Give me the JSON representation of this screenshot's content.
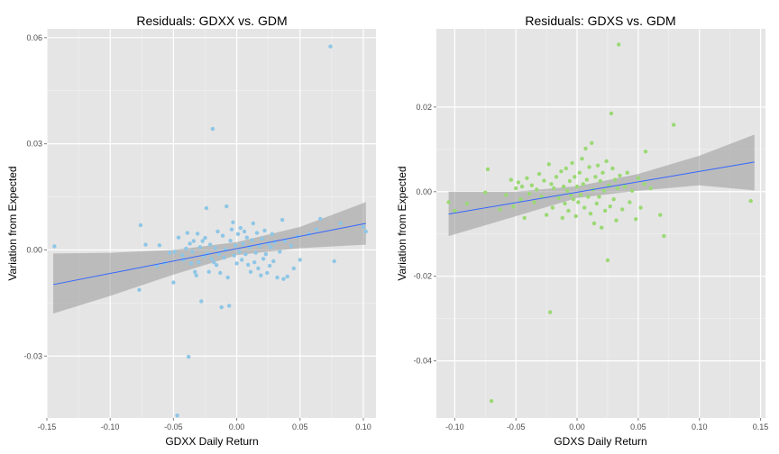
{
  "chart_data": [
    {
      "type": "scatter",
      "title": "Residuals: GDXX vs. GDM",
      "xlabel": "GDXX Daily Return",
      "ylabel": "Variation from Expected",
      "xlim": [
        -0.15,
        0.11
      ],
      "ylim": [
        -0.0475,
        0.0625
      ],
      "x_ticks": [
        "-0.15",
        "-0.10",
        "-0.05",
        "0.00",
        "0.05",
        "0.10"
      ],
      "y_ticks": [
        "-0.03",
        "0.00",
        "0.03",
        "0.06"
      ],
      "grid": true,
      "point_color": "#8ec6e6",
      "line_color": "#3366ff",
      "band_color": "#999999",
      "fit": {
        "x0": -0.145,
        "y0": -0.0098,
        "x1": 0.102,
        "y1": 0.0075
      },
      "band": {
        "x": [
          -0.145,
          -0.1,
          -0.05,
          0.0,
          0.05,
          0.102
        ],
        "upper": [
          -0.001,
          -0.0008,
          0.0,
          0.0022,
          0.0065,
          0.0135
        ],
        "lower": [
          -0.018,
          -0.013,
          -0.007,
          -0.0015,
          0.0005,
          0.0015
        ]
      },
      "points": [
        [
          -0.144,
          0.001
        ],
        [
          -0.076,
          0.007
        ],
        [
          -0.077,
          -0.0113
        ],
        [
          -0.072,
          0.0015
        ],
        [
          -0.063,
          -0.0045
        ],
        [
          -0.061,
          0.0013
        ],
        [
          -0.057,
          -0.0037
        ],
        [
          -0.053,
          -0.0008
        ],
        [
          -0.05,
          -0.0092
        ],
        [
          -0.049,
          -0.0005
        ],
        [
          -0.047,
          -0.0468
        ],
        [
          -0.046,
          0.0035
        ],
        [
          -0.043,
          -0.0015
        ],
        [
          -0.042,
          -0.0028
        ],
        [
          -0.04,
          0.0004
        ],
        [
          -0.039,
          0.0048
        ],
        [
          -0.038,
          -0.0302
        ],
        [
          -0.037,
          0.0018
        ],
        [
          -0.036,
          -0.0038
        ],
        [
          -0.035,
          -0.0005
        ],
        [
          -0.034,
          0.0025
        ],
        [
          -0.033,
          -0.0062
        ],
        [
          -0.032,
          -0.0072
        ],
        [
          -0.031,
          0.0046
        ],
        [
          -0.03,
          -0.0035
        ],
        [
          -0.029,
          0.0008
        ],
        [
          -0.028,
          -0.0145
        ],
        [
          -0.027,
          0.0025
        ],
        [
          -0.026,
          -0.0018
        ],
        [
          -0.025,
          0.0034
        ],
        [
          -0.024,
          0.0118
        ],
        [
          -0.023,
          -0.001
        ],
        [
          -0.022,
          -0.0062
        ],
        [
          -0.021,
          0.0015
        ],
        [
          -0.02,
          -0.0025
        ],
        [
          -0.019,
          0.0342
        ],
        [
          -0.018,
          -0.0035
        ],
        [
          -0.017,
          0.0005
        ],
        [
          -0.016,
          -0.0043
        ],
        [
          -0.015,
          0.0052
        ],
        [
          -0.014,
          -0.0012
        ],
        [
          -0.013,
          -0.0065
        ],
        [
          -0.012,
          -0.0162
        ],
        [
          -0.011,
          0.004
        ],
        [
          -0.01,
          -0.0022
        ],
        [
          -0.009,
          0.0002
        ],
        [
          -0.008,
          0.0123
        ],
        [
          -0.007,
          -0.0078
        ],
        [
          -0.006,
          -0.0158
        ],
        [
          -0.005,
          0.0026
        ],
        [
          -0.004,
          0.0058
        ],
        [
          -0.003,
          0.0078
        ],
        [
          -0.002,
          -0.0016
        ],
        [
          -0.001,
          0.0012
        ],
        [
          0.0,
          -0.0038
        ],
        [
          0.001,
          0.0045
        ],
        [
          0.002,
          -0.0005
        ],
        [
          0.003,
          0.0062
        ],
        [
          0.004,
          -0.0028
        ],
        [
          0.005,
          0.0018
        ],
        [
          0.006,
          0.0052
        ],
        [
          0.007,
          -0.0012
        ],
        [
          0.008,
          0.0035
        ],
        [
          0.009,
          -0.0042
        ],
        [
          0.01,
          0.0008
        ],
        [
          0.011,
          -0.0062
        ],
        [
          0.012,
          0.0028
        ],
        [
          0.013,
          0.0075
        ],
        [
          0.014,
          -0.0035
        ],
        [
          0.015,
          -0.0008
        ],
        [
          0.016,
          0.0048
        ],
        [
          0.017,
          -0.0052
        ],
        [
          0.018,
          0.0012
        ],
        [
          0.019,
          -0.0072
        ],
        [
          0.02,
          0.0032
        ],
        [
          0.021,
          -0.0025
        ],
        [
          0.022,
          0.0055
        ],
        [
          0.023,
          -0.0012
        ],
        [
          0.024,
          -0.0065
        ],
        [
          0.025,
          0.0018
        ],
        [
          0.026,
          -0.0045
        ],
        [
          0.027,
          0.0008
        ],
        [
          0.028,
          0.0045
        ],
        [
          0.029,
          -0.0032
        ],
        [
          0.03,
          0.0022
        ],
        [
          0.032,
          -0.0078
        ],
        [
          0.034,
          -0.0005
        ],
        [
          0.036,
          0.0085
        ],
        [
          0.037,
          -0.0082
        ],
        [
          0.038,
          0.0025
        ],
        [
          0.04,
          -0.0075
        ],
        [
          0.043,
          0.0012
        ],
        [
          0.045,
          -0.0052
        ],
        [
          0.048,
          0.0038
        ],
        [
          0.05,
          -0.0028
        ],
        [
          0.057,
          0.0045
        ],
        [
          0.063,
          0.0058
        ],
        [
          0.066,
          0.0088
        ],
        [
          0.074,
          0.0575
        ],
        [
          0.077,
          -0.0032
        ],
        [
          0.082,
          0.0075
        ],
        [
          0.1,
          0.0065
        ],
        [
          0.102,
          0.0052
        ]
      ]
    },
    {
      "type": "scatter",
      "title": "Residuals: GDXS vs. GDM",
      "xlabel": "GDXS Daily Return",
      "ylabel": "Variation from Expected",
      "xlim": [
        -0.115,
        0.154
      ],
      "ylim": [
        -0.0535,
        0.0385
      ],
      "x_ticks": [
        "-0.10",
        "-0.05",
        "0.00",
        "0.05",
        "0.10",
        "0.15"
      ],
      "y_ticks": [
        "-0.04",
        "-0.02",
        "0.00",
        "0.02"
      ],
      "grid": true,
      "point_color": "#9bd974",
      "line_color": "#3366ff",
      "band_color": "#999999",
      "fit": {
        "x0": -0.105,
        "y0": -0.0053,
        "x1": 0.145,
        "y1": 0.007
      },
      "band": {
        "x": [
          -0.105,
          -0.05,
          0.0,
          0.05,
          0.1,
          0.145
        ],
        "upper": [
          0.0,
          0.0,
          0.0013,
          0.0042,
          0.0085,
          0.0135
        ],
        "lower": [
          -0.0105,
          -0.0058,
          -0.0015,
          0.0002,
          0.0015,
          0.0003
        ]
      },
      "points": [
        [
          -0.105,
          -0.0025
        ],
        [
          -0.1,
          -0.0045
        ],
        [
          -0.09,
          -0.0028
        ],
        [
          -0.075,
          -0.0002
        ],
        [
          -0.073,
          0.0053
        ],
        [
          -0.07,
          -0.0495
        ],
        [
          -0.063,
          -0.0042
        ],
        [
          -0.058,
          -0.0008
        ],
        [
          -0.054,
          0.0028
        ],
        [
          -0.052,
          -0.0035
        ],
        [
          -0.05,
          0.0008
        ],
        [
          -0.048,
          0.0022
        ],
        [
          -0.046,
          -0.0018
        ],
        [
          -0.045,
          0.0012
        ],
        [
          -0.043,
          -0.0062
        ],
        [
          -0.041,
          0.0032
        ],
        [
          -0.039,
          -0.0005
        ],
        [
          -0.037,
          0.0015
        ],
        [
          -0.035,
          -0.0025
        ],
        [
          -0.033,
          0.0005
        ],
        [
          -0.031,
          0.0042
        ],
        [
          -0.029,
          -0.0012
        ],
        [
          -0.027,
          0.0026
        ],
        [
          -0.025,
          -0.0055
        ],
        [
          -0.023,
          0.0065
        ],
        [
          -0.022,
          -0.0285
        ],
        [
          -0.021,
          0.0018
        ],
        [
          -0.02,
          -0.0038
        ],
        [
          -0.019,
          0.0008
        ],
        [
          -0.017,
          0.0035
        ],
        [
          -0.015,
          -0.0015
        ],
        [
          -0.013,
          0.0048
        ],
        [
          -0.012,
          -0.0062
        ],
        [
          -0.011,
          0.0012
        ],
        [
          -0.01,
          -0.0028
        ],
        [
          -0.009,
          0.0055
        ],
        [
          -0.008,
          0.0002
        ],
        [
          -0.007,
          -0.0045
        ],
        [
          -0.006,
          0.0025
        ],
        [
          -0.005,
          -0.0008
        ],
        [
          -0.004,
          0.0068
        ],
        [
          -0.003,
          -0.0018
        ],
        [
          -0.002,
          0.0035
        ],
        [
          -0.001,
          -0.0058
        ],
        [
          0.0,
          0.0012
        ],
        [
          0.001,
          -0.0025
        ],
        [
          0.002,
          0.0045
        ],
        [
          0.003,
          -0.0008
        ],
        [
          0.004,
          0.0078
        ],
        [
          0.005,
          0.0018
        ],
        [
          0.006,
          -0.0038
        ],
        [
          0.007,
          0.0102
        ],
        [
          0.008,
          0.0028
        ],
        [
          0.009,
          -0.0012
        ],
        [
          0.01,
          0.0058
        ],
        [
          0.011,
          -0.0052
        ],
        [
          0.012,
          0.0115
        ],
        [
          0.013,
          0.0005
        ],
        [
          0.014,
          -0.0075
        ],
        [
          0.015,
          0.0035
        ],
        [
          0.016,
          -0.0028
        ],
        [
          0.017,
          0.0062
        ],
        [
          0.018,
          -0.0012
        ],
        [
          0.019,
          0.0025
        ],
        [
          0.02,
          -0.0085
        ],
        [
          0.021,
          0.0045
        ],
        [
          0.022,
          0.0002
        ],
        [
          0.023,
          -0.0045
        ],
        [
          0.024,
          0.0072
        ],
        [
          0.025,
          -0.0162
        ],
        [
          0.026,
          0.0015
        ],
        [
          0.027,
          -0.0035
        ],
        [
          0.028,
          0.0185
        ],
        [
          0.029,
          0.0055
        ],
        [
          0.03,
          -0.0018
        ],
        [
          0.031,
          0.0028
        ],
        [
          0.032,
          -0.0068
        ],
        [
          0.033,
          0.0008
        ],
        [
          0.034,
          0.0348
        ],
        [
          0.035,
          0.0038
        ],
        [
          0.037,
          -0.0042
        ],
        [
          0.039,
          0.0012
        ],
        [
          0.041,
          0.0045
        ],
        [
          0.043,
          -0.0025
        ],
        [
          0.045,
          0.0002
        ],
        [
          0.048,
          -0.0065
        ],
        [
          0.05,
          0.0032
        ],
        [
          0.052,
          -0.0038
        ],
        [
          0.055,
          0.0018
        ],
        [
          0.056,
          0.0095
        ],
        [
          0.06,
          0.0008
        ],
        [
          0.068,
          -0.0055
        ],
        [
          0.071,
          -0.0105
        ],
        [
          0.079,
          0.0158
        ],
        [
          0.142,
          -0.0022
        ]
      ]
    }
  ]
}
